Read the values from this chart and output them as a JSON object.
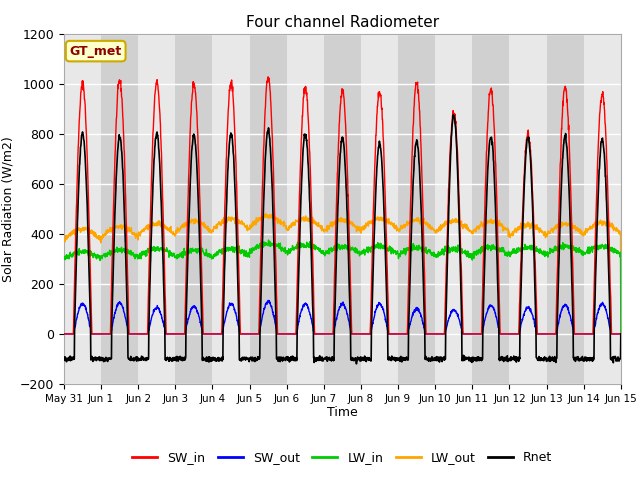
{
  "title": "Four channel Radiometer",
  "ylabel": "Solar Radiation (W/m2)",
  "xlabel": "Time",
  "annotation": "GT_met",
  "ylim": [
    -200,
    1200
  ],
  "xlim_days": [
    0,
    15
  ],
  "tick_labels": [
    "May 31",
    "Jun 1",
    "Jun 2",
    "Jun 3",
    "Jun 4",
    "Jun 5",
    "Jun 6",
    "Jun 7",
    "Jun 8",
    "Jun 9",
    "Jun 10",
    "Jun 11",
    "Jun 12",
    "Jun 13",
    "Jun 14",
    "Jun 15"
  ],
  "legend": [
    "SW_in",
    "SW_out",
    "LW_in",
    "LW_out",
    "Rnet"
  ],
  "colors": {
    "SW_in": "#ff0000",
    "SW_out": "#0000ff",
    "LW_in": "#00cc00",
    "LW_out": "#ffa500",
    "Rnet": "#000000"
  },
  "background_light": "#e8e8e8",
  "background_dark": "#d0d0d0",
  "grid_color": "#ffffff",
  "annotation_color": "#8B0000",
  "annotation_bg": "#ffffcc",
  "annotation_edge": "#ccaa00"
}
